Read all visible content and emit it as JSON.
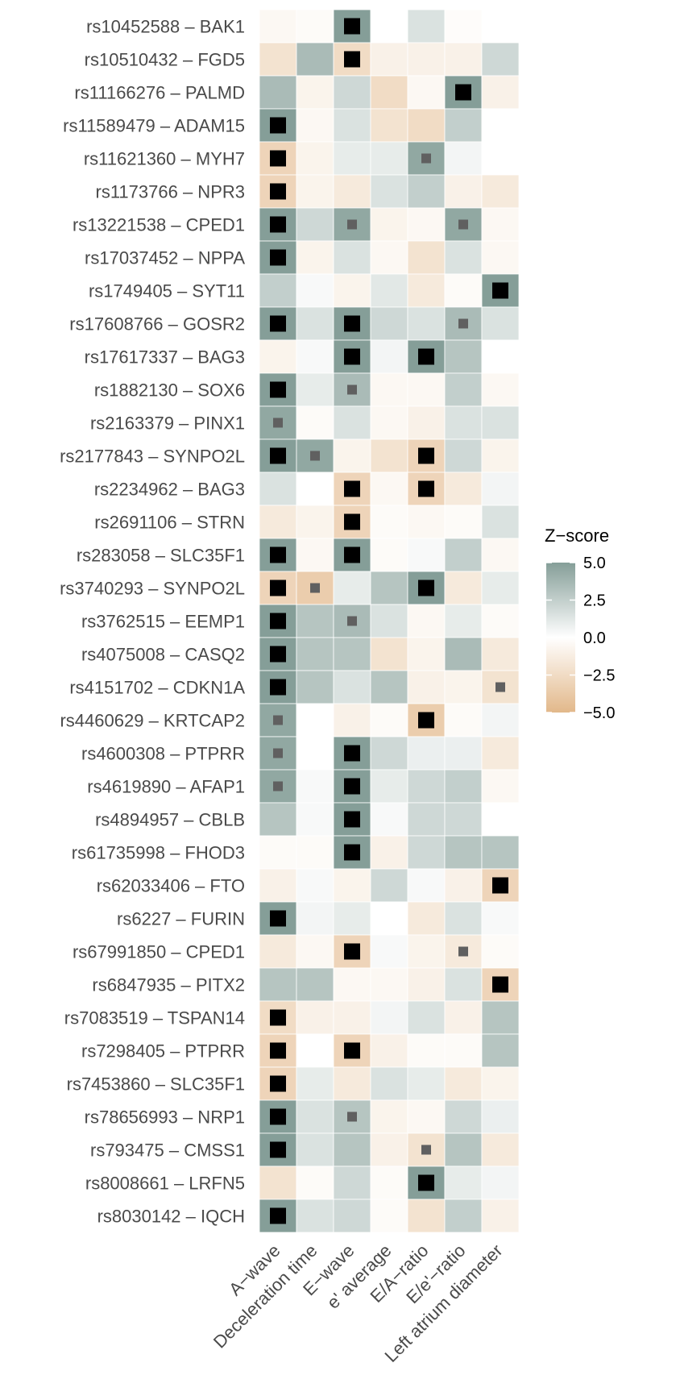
{
  "chart_data": {
    "type": "heatmap",
    "title": "",
    "columns": [
      "A−wave",
      "Deceleration time",
      "E−wave",
      "e' average",
      "E/A−ratio",
      "E/e'−ratio",
      "Left atrium diameter"
    ],
    "rows": [
      "rs10452588 – BAK1",
      "rs10510432 – FGD5",
      "rs11166276 – PALMD",
      "rs11589479 – ADAM15",
      "rs11621360 – MYH7",
      "rs1173766 – NPR3",
      "rs13221538 – CPED1",
      "rs17037452 – NPPA",
      "rs1749405 – SYT11",
      "rs17608766 – GOSR2",
      "rs17617337 – BAG3",
      "rs1882130 – SOX6",
      "rs2163379 – PINX1",
      "rs2177843 – SYNPO2L",
      "rs2234962 – BAG3",
      "rs2691106 – STRN",
      "rs283058 – SLC35F1",
      "rs3740293 – SYNPO2L",
      "rs3762515 – EEMP1",
      "rs4075008 – CASQ2",
      "rs4151702 – CDKN1A",
      "rs4460629 – KRTCAP2",
      "rs4600308 – PTPRR",
      "rs4619890 – AFAP1",
      "rs4894957 – CBLB",
      "rs61735998 – FHOD3",
      "rs62033406 – FTO",
      "rs6227 – FURIN",
      "rs67991850 – CPED1",
      "rs6847935 – PITX2",
      "rs7083519 – TSPAN14",
      "rs7298405 – PTPRR",
      "rs7453860 – SLC35F1",
      "rs78656993 – NRP1",
      "rs793475 – CMSS1",
      "rs8008661 – LRFN5",
      "rs8030142 – IQCH"
    ],
    "values": [
      [
        -0.5,
        -0.3,
        5.0,
        0.0,
        1.5,
        -0.2,
        0.0
      ],
      [
        -2.0,
        3.5,
        -2.5,
        -1.0,
        -1.0,
        -1.0,
        2.0
      ],
      [
        3.5,
        -0.8,
        2.0,
        -2.5,
        -0.5,
        5.0,
        -1.0
      ],
      [
        5.0,
        -0.5,
        1.5,
        -2.0,
        -2.5,
        2.5,
        0.0
      ],
      [
        -3.0,
        -0.8,
        1.0,
        1.0,
        4.5,
        0.5,
        0.0
      ],
      [
        -3.0,
        -0.8,
        -1.5,
        1.5,
        2.5,
        -1.0,
        -1.5
      ],
      [
        5.0,
        2.0,
        4.5,
        -0.8,
        -0.5,
        4.5,
        -0.5
      ],
      [
        5.0,
        -0.8,
        1.5,
        -0.5,
        -2.0,
        1.5,
        -0.5
      ],
      [
        2.5,
        0.3,
        -0.8,
        1.2,
        -1.5,
        -0.3,
        5.0
      ],
      [
        5.0,
        1.5,
        5.0,
        2.0,
        1.5,
        3.5,
        1.5
      ],
      [
        -0.8,
        0.3,
        5.0,
        0.5,
        5.0,
        3.0,
        0.0
      ],
      [
        5.0,
        1.0,
        3.5,
        -0.5,
        -0.5,
        2.5,
        -0.5
      ],
      [
        4.5,
        -0.3,
        1.5,
        -0.5,
        -1.0,
        1.5,
        1.5
      ],
      [
        5.0,
        4.5,
        -0.8,
        -2.0,
        -3.0,
        2.0,
        -0.8
      ],
      [
        1.5,
        0.0,
        -3.0,
        -0.5,
        -3.0,
        -1.5,
        0.5
      ],
      [
        -1.5,
        -0.8,
        -3.0,
        -0.3,
        -0.5,
        -0.3,
        1.5
      ],
      [
        5.0,
        -0.5,
        5.0,
        -0.3,
        0.3,
        2.5,
        -0.5
      ],
      [
        -3.0,
        -3.5,
        1.0,
        3.0,
        5.0,
        -1.5,
        1.0
      ],
      [
        5.0,
        3.0,
        3.5,
        1.5,
        -0.5,
        1.0,
        -0.3
      ],
      [
        5.0,
        3.0,
        3.0,
        -2.0,
        -0.8,
        3.5,
        -1.5
      ],
      [
        5.0,
        3.0,
        1.5,
        3.0,
        -1.0,
        -0.8,
        -2.0
      ],
      [
        4.5,
        0.0,
        -1.0,
        -0.3,
        -3.5,
        -0.3,
        0.5
      ],
      [
        4.5,
        0.0,
        5.0,
        2.0,
        0.8,
        0.8,
        -1.5
      ],
      [
        4.5,
        0.3,
        5.0,
        1.0,
        2.0,
        2.5,
        -0.5
      ],
      [
        3.0,
        0.3,
        5.0,
        0.3,
        2.0,
        2.0,
        0.0
      ],
      [
        -0.3,
        -0.3,
        5.0,
        -1.0,
        2.0,
        3.0,
        3.0
      ],
      [
        -1.0,
        0.3,
        -0.8,
        2.0,
        0.3,
        -1.0,
        -3.0
      ],
      [
        5.0,
        0.5,
        1.0,
        0.0,
        -1.5,
        1.5,
        0.3
      ],
      [
        -1.5,
        -0.5,
        -3.0,
        0.3,
        -0.8,
        -1.5,
        -0.3
      ],
      [
        3.0,
        3.0,
        -0.5,
        -0.5,
        -1.0,
        1.5,
        -3.0
      ],
      [
        -2.5,
        -1.0,
        -1.0,
        0.5,
        1.5,
        -1.0,
        3.0
      ],
      [
        -3.0,
        0.0,
        -3.0,
        -1.0,
        -0.3,
        -0.3,
        3.0
      ],
      [
        -3.0,
        1.0,
        -1.5,
        1.5,
        1.0,
        -1.5,
        -0.8
      ],
      [
        5.0,
        1.5,
        3.0,
        -0.8,
        -0.5,
        2.0,
        0.8
      ],
      [
        5.0,
        1.5,
        3.0,
        -1.0,
        -2.0,
        3.0,
        -1.5
      ],
      [
        -2.0,
        -0.3,
        2.0,
        -0.3,
        5.0,
        1.0,
        0.5
      ],
      [
        5.0,
        1.5,
        2.0,
        -0.3,
        -2.0,
        2.5,
        -1.0
      ]
    ],
    "markers_legend": "black square = large marker, grey square = small marker",
    "markers_large": [
      [
        0,
        2
      ],
      [
        1,
        2
      ],
      [
        2,
        5
      ],
      [
        3,
        0
      ],
      [
        4,
        0
      ],
      [
        5,
        0
      ],
      [
        6,
        0
      ],
      [
        7,
        0
      ],
      [
        8,
        6
      ],
      [
        9,
        0
      ],
      [
        9,
        2
      ],
      [
        10,
        2
      ],
      [
        10,
        4
      ],
      [
        11,
        0
      ],
      [
        13,
        0
      ],
      [
        13,
        4
      ],
      [
        14,
        2
      ],
      [
        14,
        4
      ],
      [
        15,
        2
      ],
      [
        16,
        0
      ],
      [
        16,
        2
      ],
      [
        17,
        0
      ],
      [
        17,
        4
      ],
      [
        18,
        0
      ],
      [
        19,
        0
      ],
      [
        20,
        0
      ],
      [
        21,
        4
      ],
      [
        22,
        2
      ],
      [
        23,
        2
      ],
      [
        24,
        2
      ],
      [
        25,
        2
      ],
      [
        26,
        6
      ],
      [
        27,
        0
      ],
      [
        28,
        2
      ],
      [
        29,
        6
      ],
      [
        30,
        0
      ],
      [
        31,
        0
      ],
      [
        31,
        2
      ],
      [
        32,
        0
      ],
      [
        33,
        0
      ],
      [
        34,
        0
      ],
      [
        35,
        4
      ],
      [
        36,
        0
      ]
    ],
    "markers_small": [
      [
        4,
        4
      ],
      [
        6,
        2
      ],
      [
        6,
        5
      ],
      [
        9,
        5
      ],
      [
        11,
        2
      ],
      [
        12,
        0
      ],
      [
        13,
        1
      ],
      [
        17,
        1
      ],
      [
        18,
        2
      ],
      [
        20,
        6
      ],
      [
        21,
        0
      ],
      [
        22,
        0
      ],
      [
        23,
        0
      ],
      [
        28,
        5
      ],
      [
        33,
        2
      ],
      [
        34,
        4
      ]
    ],
    "legend": {
      "title": "Z−score",
      "ticks": [
        "5.0",
        "2.5",
        "0.0",
        "−2.5",
        "−5.0"
      ],
      "tick_values": [
        5.0,
        2.5,
        0.0,
        -2.5,
        -5.0
      ],
      "range": [
        -5.0,
        5.0
      ],
      "placement": "right"
    },
    "colors": {
      "high": "#859e98",
      "mid": "#ffffff",
      "low": "#e2b88a",
      "marker_large": "#000000",
      "marker_small": "#606060"
    },
    "grid": false
  }
}
